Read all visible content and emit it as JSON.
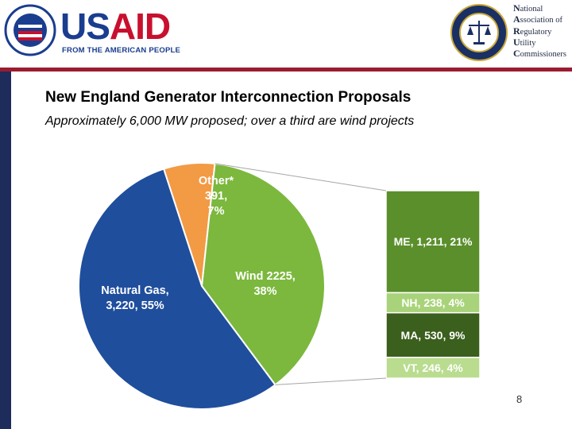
{
  "header": {
    "usaid_word_blue": "US",
    "usaid_word_red": "AID",
    "usaid_tagline": "FROM THE AMERICAN PEOPLE",
    "naruc_lines": [
      {
        "initial": "N",
        "rest": "ational"
      },
      {
        "initial": "A",
        "rest": "ssociation of"
      },
      {
        "initial": "R",
        "rest": "egulatory"
      },
      {
        "initial": "U",
        "rest": "tility"
      },
      {
        "initial": "C",
        "rest": "ommissioners"
      }
    ]
  },
  "slide": {
    "title": "New England Generator Interconnection Proposals",
    "subtitle": "Approximately 6,000 MW proposed; over a third are wind projects",
    "page_number": "8"
  },
  "colors": {
    "natural_gas": "#1f4e9c",
    "wind": "#7bb83d",
    "other": "#f39a45",
    "me": "#5a8f2c",
    "nh": "#a9d37a",
    "ma": "#3b5f1d",
    "vt": "#b9dc8f"
  },
  "chart_data": [
    {
      "type": "pie",
      "slices": [
        {
          "key": "natural_gas",
          "label_lines": [
            "Natural Gas,",
            "3,220, 55%"
          ],
          "value": 3220,
          "percent": 55
        },
        {
          "key": "other",
          "label_lines": [
            "Other*",
            "391,",
            "7%"
          ],
          "value": 391,
          "percent": 7
        },
        {
          "key": "wind",
          "label_lines": [
            "Wind 2225,",
            "38%"
          ],
          "value": 2225,
          "percent": 38
        }
      ]
    },
    {
      "type": "bar",
      "stacked": true,
      "description_of": "wind breakdown by state",
      "segments": [
        {
          "key": "me",
          "label": "ME, 1,211, 21%",
          "value": 1211,
          "percent": 21
        },
        {
          "key": "nh",
          "label": "NH, 238, 4%",
          "value": 238,
          "percent": 4
        },
        {
          "key": "ma",
          "label": "MA, 530, 9%",
          "value": 530,
          "percent": 9
        },
        {
          "key": "vt",
          "label": "VT, 246, 4%",
          "value": 246,
          "percent": 4
        }
      ]
    }
  ]
}
